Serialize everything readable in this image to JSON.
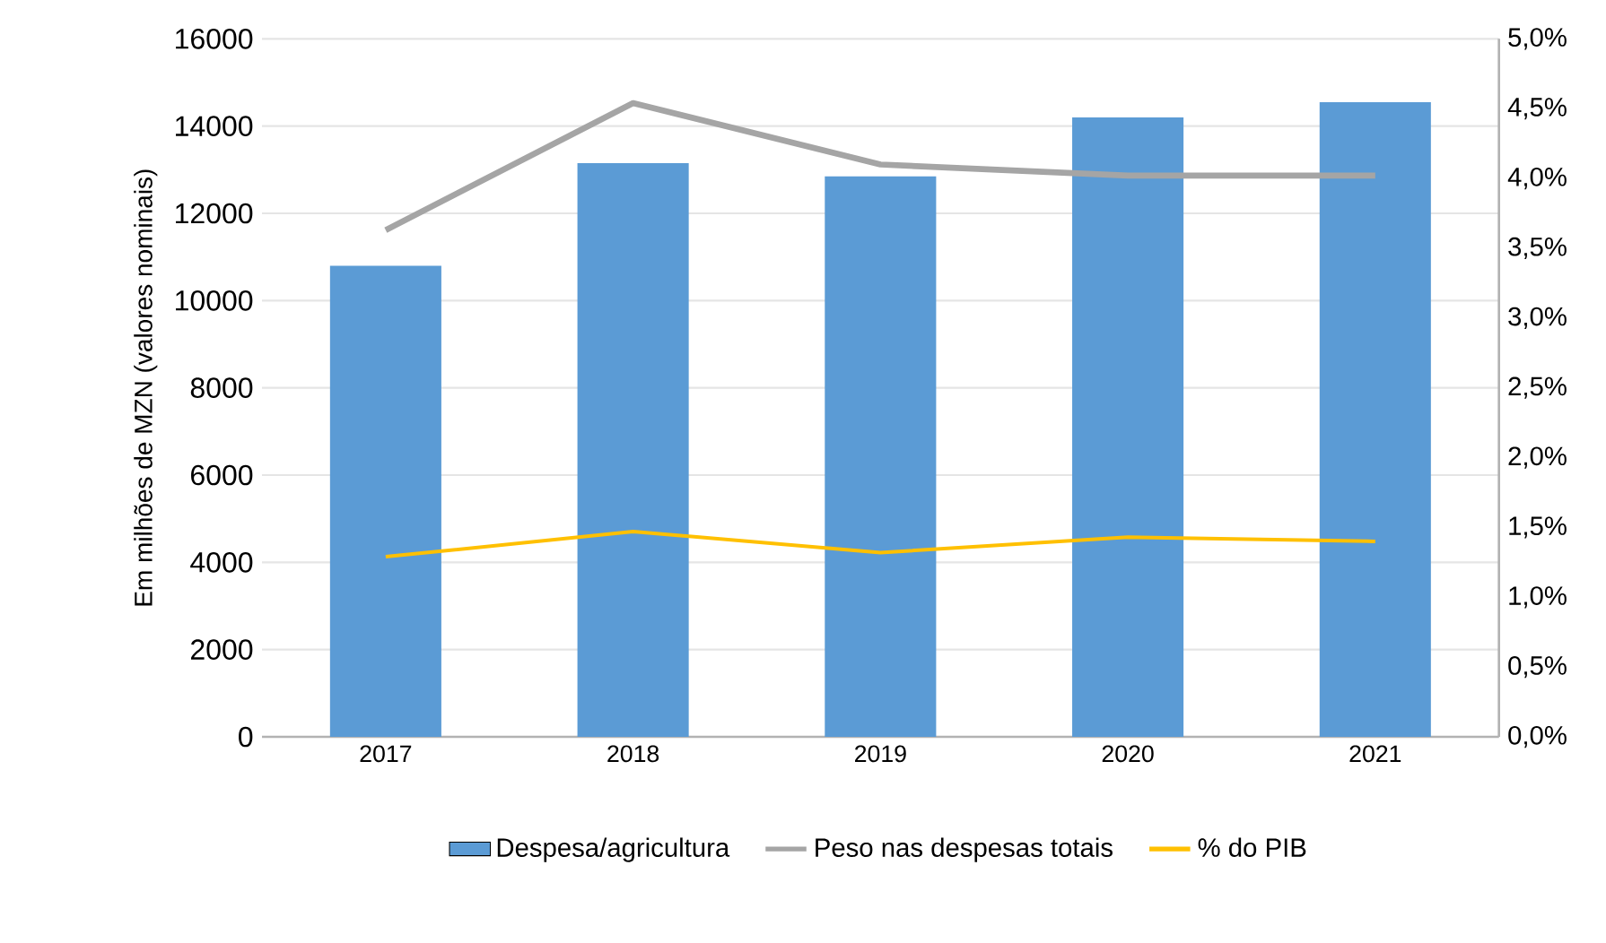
{
  "chart_data": {
    "type": "bar",
    "categories": [
      "2017",
      "2018",
      "2019",
      "2020",
      "2021"
    ],
    "ylabel": "Em milhões de MZN (valores nominais)",
    "ylim": [
      0,
      16000
    ],
    "yticks": [
      0,
      2000,
      4000,
      6000,
      8000,
      10000,
      12000,
      14000,
      16000
    ],
    "y2lim": [
      0,
      5
    ],
    "y2ticks": [
      {
        "value": 0,
        "label": "0,0%"
      },
      {
        "value": 0.5,
        "label": "0,5%"
      },
      {
        "value": 1,
        "label": "1,0%"
      },
      {
        "value": 1.5,
        "label": "1,5%"
      },
      {
        "value": 2,
        "label": "2,0%"
      },
      {
        "value": 2.5,
        "label": "2,5%"
      },
      {
        "value": 3,
        "label": "3,0%"
      },
      {
        "value": 3.5,
        "label": "3,5%"
      },
      {
        "value": 4,
        "label": "4,0%"
      },
      {
        "value": 4.5,
        "label": "4,5%"
      },
      {
        "value": 5,
        "label": "5,0%"
      }
    ],
    "series": [
      {
        "name": "Despesa/agricultura",
        "color": "#5b9bd5",
        "values": [
          10800,
          13150,
          12850,
          14200,
          14550
        ]
      },
      {
        "name": "Peso nas despesas totais",
        "type": "line",
        "axis": "y2",
        "color": "#a5a5a5",
        "values": [
          3.63,
          4.54,
          4.1,
          4.02,
          4.02
        ]
      },
      {
        "name": "% do PIB",
        "type": "line",
        "axis": "y2",
        "color": "#ffc000",
        "values": [
          1.29,
          1.47,
          1.32,
          1.43,
          1.4
        ]
      }
    ],
    "grid": "y",
    "legend": "bottom",
    "marker": "none",
    "line_style": "solid"
  }
}
